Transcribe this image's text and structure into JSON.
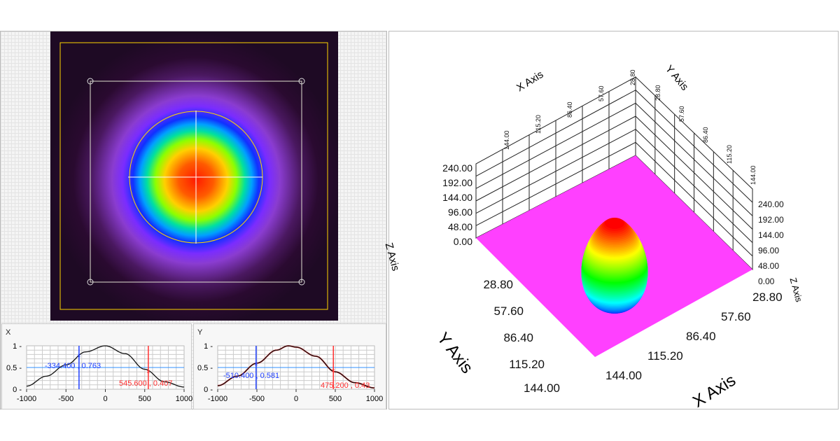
{
  "beam_view": {
    "colors": {
      "roi": "#ffd400",
      "aperture": "#e8e8e8",
      "crosshair": "#ffffff"
    }
  },
  "profiles": {
    "x": {
      "title": "X",
      "cursor_blue": "-334.400 , 0.763",
      "cursor_red": "545.600 , 0.407"
    },
    "y": {
      "title": "Y",
      "cursor_blue": "-510.400 , 0.581",
      "cursor_red": "475.200 , 0.43"
    }
  },
  "chart_data": [
    {
      "type": "line",
      "title": "X",
      "xlim": [
        -1000,
        1000
      ],
      "ylim": [
        0,
        1
      ],
      "xticks": [
        "-1000",
        "-500",
        "0",
        "500",
        "1000"
      ],
      "yticks": [
        "0",
        "0.5",
        "1"
      ],
      "grid": true,
      "x": [
        -1000,
        -750,
        -500,
        -250,
        0,
        250,
        500,
        750,
        1000
      ],
      "values": [
        0.07,
        0.3,
        0.56,
        0.86,
        1.0,
        0.82,
        0.46,
        0.17,
        0.05
      ],
      "cursors": [
        {
          "x": -334.4,
          "y": 0.763,
          "color": "#2040ff"
        },
        {
          "x": 545.6,
          "y": 0.407,
          "color": "#ff3030"
        }
      ],
      "hline": 0.5
    },
    {
      "type": "line",
      "title": "Y",
      "xlim": [
        -1000,
        1000
      ],
      "ylim": [
        0,
        1
      ],
      "xticks": [
        "-1000",
        "-500",
        "0",
        "500",
        "1000"
      ],
      "yticks": [
        "0",
        "0.5",
        "1"
      ],
      "grid": true,
      "x": [
        -1000,
        -750,
        -500,
        -250,
        -100,
        0,
        250,
        500,
        750,
        1000
      ],
      "values": [
        0.08,
        0.3,
        0.6,
        0.9,
        1.0,
        0.97,
        0.76,
        0.4,
        0.15,
        0.03
      ],
      "cursors": [
        {
          "x": -510.4,
          "y": 0.581,
          "color": "#2040ff"
        },
        {
          "x": 475.2,
          "y": 0.43,
          "color": "#ff3030"
        }
      ],
      "hline": 0.5
    }
  ],
  "surface3d": {
    "x_axis_title": "X Axis",
    "y_axis_title": "Y Axis",
    "z_axis_title": "Z Axis",
    "x_ticks": [
      "28.80",
      "57.60",
      "86.40",
      "115.20",
      "144.00"
    ],
    "y_ticks": [
      "0.00",
      "28.80",
      "57.60",
      "86.40",
      "115.20",
      "144.00"
    ],
    "z_ticks": [
      "0.00",
      "48.00",
      "96.00",
      "144.00",
      "192.00",
      "240.00"
    ],
    "floor_color": "#ff40ff"
  }
}
